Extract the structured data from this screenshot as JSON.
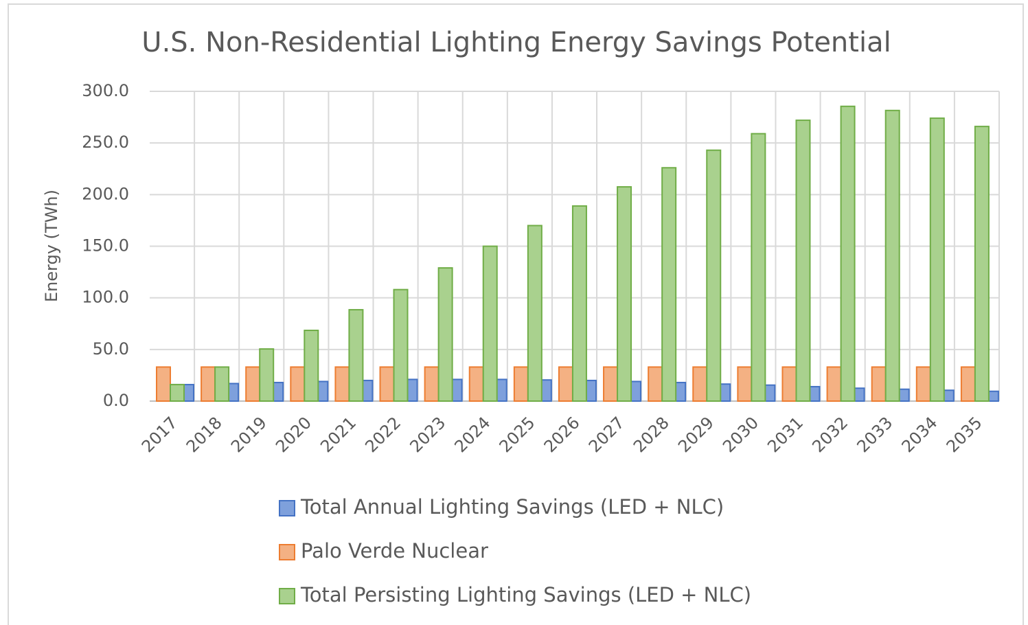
{
  "chart_data": {
    "type": "bar",
    "title": "U.S. Non-Residential  Lighting Energy Savings Potential",
    "y_label": "Energy (TWh)",
    "categories": [
      "2017",
      "2018",
      "2019",
      "2020",
      "2021",
      "2022",
      "2023",
      "2024",
      "2025",
      "2026",
      "2027",
      "2028",
      "2029",
      "2030",
      "2031",
      "2032",
      "2033",
      "2034",
      "2035"
    ],
    "series": [
      {
        "name": "Total Annual Lighting Savings (LED + NLC)",
        "color": "#4472c4",
        "values": [
          16,
          17,
          18,
          19,
          20,
          21,
          21,
          21,
          20.5,
          20,
          19,
          18,
          16.5,
          15.5,
          14,
          12.5,
          11.5,
          10.5,
          9.5
        ]
      },
      {
        "name": "Palo Verde Nuclear",
        "color": "#ed7d31",
        "values": [
          33,
          33,
          33,
          33,
          33,
          33,
          33,
          33,
          33,
          33,
          33,
          33,
          33,
          33,
          33,
          33,
          33,
          33,
          33
        ]
      },
      {
        "name": "Total Persisting Lighting Savings (LED + NLC)",
        "color": "#70ad47",
        "values": [
          16,
          33,
          50.5,
          68.5,
          88.5,
          108,
          129,
          150,
          170,
          189,
          207.5,
          226,
          243,
          259,
          272,
          285.5,
          281.5,
          274,
          266
        ]
      }
    ],
    "ylim": [
      0,
      300
    ],
    "yticks": [
      {
        "value": 0,
        "label": "0.0"
      },
      {
        "value": 50,
        "label": "50.0"
      },
      {
        "value": 100,
        "label": "100.0"
      },
      {
        "value": 150,
        "label": "150.0"
      },
      {
        "value": 200,
        "label": "200.0"
      },
      {
        "value": 250,
        "label": "250.0"
      },
      {
        "value": 300,
        "label": "300.0"
      }
    ],
    "grid": true,
    "legend": "bottom"
  }
}
